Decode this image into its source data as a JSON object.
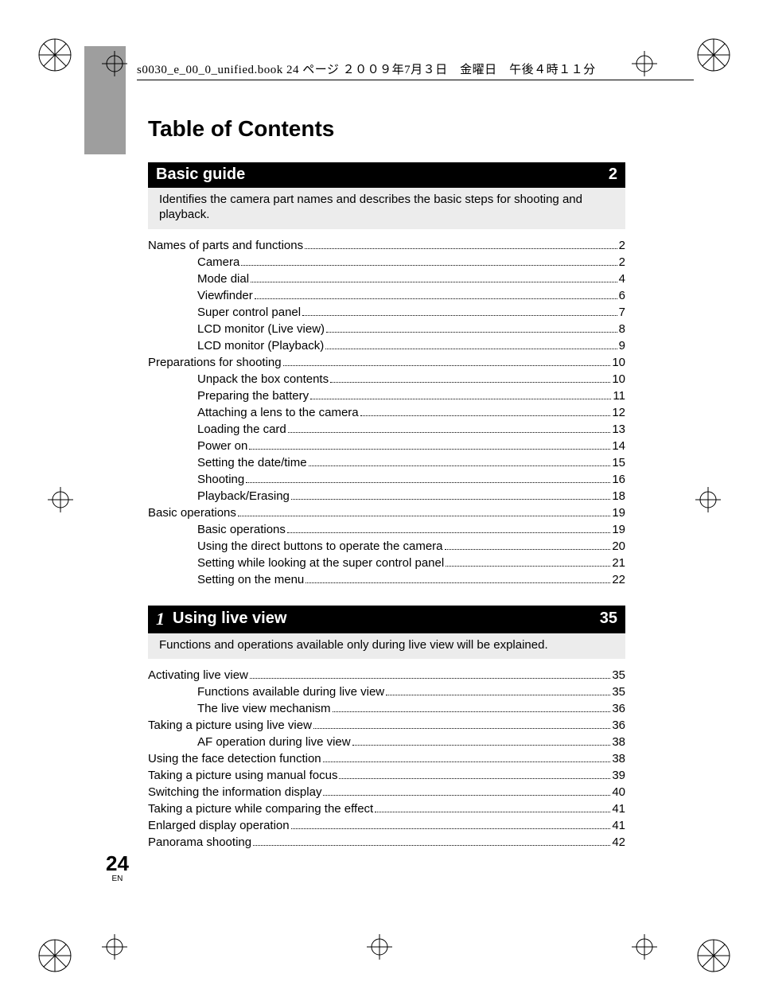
{
  "colors": {
    "bar_bg": "#000000",
    "bar_fg": "#ffffff",
    "desc_bg": "#ececec",
    "tab_bg": "#9e9e9e",
    "text": "#000000",
    "page_bg": "#ffffff"
  },
  "fonts": {
    "title_size": 28,
    "bar_size": 20,
    "desc_size": 15,
    "toc_size": 15,
    "header_size": 15,
    "pgnum_size": 26,
    "pgnum_en_size": 10
  },
  "header_line": "s0030_e_00_0_unified.book  24 ページ  ２００９年7月３日　金曜日　午後４時１１分",
  "page_title": "Table of Contents",
  "page_number": "24",
  "page_lang": "EN",
  "sections": [
    {
      "number": "",
      "title": "Basic guide",
      "page": "2",
      "description": "Identifies the camera part names and describes the basic steps for shooting and playback.",
      "toc": [
        {
          "level": 1,
          "text": "Names of parts and functions",
          "page": "2"
        },
        {
          "level": 2,
          "text": "Camera",
          "page": "2"
        },
        {
          "level": 2,
          "text": "Mode dial",
          "page": "4"
        },
        {
          "level": 2,
          "text": "Viewfinder",
          "page": "6"
        },
        {
          "level": 2,
          "text": "Super control panel",
          "page": "7"
        },
        {
          "level": 2,
          "text": "LCD monitor (Live view)",
          "page": "8"
        },
        {
          "level": 2,
          "text": "LCD monitor (Playback)",
          "page": "9"
        },
        {
          "level": 1,
          "text": "Preparations for shooting",
          "page": "10"
        },
        {
          "level": 2,
          "text": "Unpack the box contents",
          "page": "10"
        },
        {
          "level": 2,
          "text": "Preparing the battery",
          "page": "11"
        },
        {
          "level": 2,
          "text": "Attaching a lens to the camera",
          "page": "12"
        },
        {
          "level": 2,
          "text": "Loading the card",
          "page": "13"
        },
        {
          "level": 2,
          "text": "Power on",
          "page": "14"
        },
        {
          "level": 2,
          "text": "Setting the date/time",
          "page": "15"
        },
        {
          "level": 2,
          "text": "Shooting",
          "page": "16"
        },
        {
          "level": 2,
          "text": "Playback/Erasing",
          "page": "18"
        },
        {
          "level": 1,
          "text": "Basic operations",
          "page": "19"
        },
        {
          "level": 2,
          "text": "Basic operations",
          "page": "19"
        },
        {
          "level": 2,
          "text": "Using the direct buttons to operate the camera",
          "page": "20"
        },
        {
          "level": 2,
          "text": "Setting while looking at the super control panel",
          "page": "21"
        },
        {
          "level": 2,
          "text": "Setting on the menu",
          "page": "22"
        }
      ]
    },
    {
      "number": "1",
      "title": "Using live view",
      "page": "35",
      "description": "Functions and operations available only during live view will be explained.",
      "toc": [
        {
          "level": 1,
          "text": "Activating live view",
          "page": "35"
        },
        {
          "level": 2,
          "text": "Functions available during live view",
          "page": "35"
        },
        {
          "level": 2,
          "text": "The live view mechanism",
          "page": "36"
        },
        {
          "level": 1,
          "text": "Taking a picture using live view",
          "page": "36"
        },
        {
          "level": 2,
          "text": "AF operation during live view",
          "page": "38"
        },
        {
          "level": 1,
          "text": "Using the face detection function",
          "page": "38"
        },
        {
          "level": 1,
          "text": "Taking a picture using manual focus",
          "page": "39"
        },
        {
          "level": 1,
          "text": "Switching the information display",
          "page": "40"
        },
        {
          "level": 1,
          "text": "Taking a picture while comparing the effect",
          "page": "41"
        },
        {
          "level": 1,
          "text": "Enlarged display operation",
          "page": "41"
        },
        {
          "level": 1,
          "text": "Panorama shooting",
          "page": "42"
        }
      ]
    }
  ]
}
